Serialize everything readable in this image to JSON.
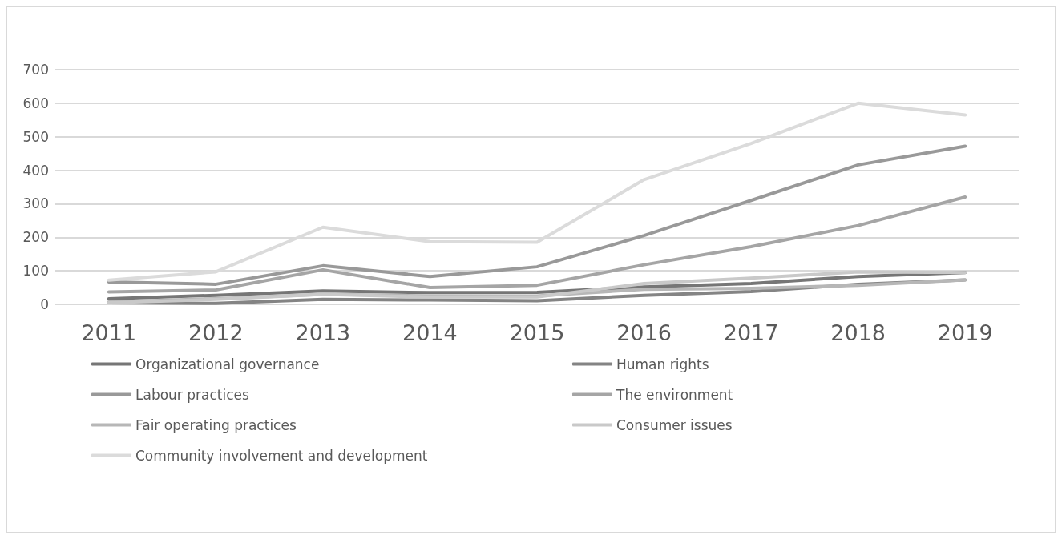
{
  "chart_data": {
    "type": "line",
    "categories": [
      "2011",
      "2012",
      "2013",
      "2014",
      "2015",
      "2016",
      "2017",
      "2018",
      "2019"
    ],
    "series": [
      {
        "name": "Organizational governance",
        "color": "#767676",
        "values": [
          17,
          27,
          40,
          35,
          36,
          52,
          62,
          83,
          95
        ]
      },
      {
        "name": "Human rights",
        "color": "#848484",
        "values": [
          5,
          3,
          15,
          13,
          11,
          27,
          38,
          60,
          73
        ]
      },
      {
        "name": "Labour practices",
        "color": "#999999",
        "values": [
          67,
          60,
          115,
          83,
          112,
          205,
          310,
          416,
          472
        ]
      },
      {
        "name": "The environment",
        "color": "#a5a5a5",
        "values": [
          37,
          43,
          103,
          50,
          57,
          118,
          172,
          235,
          320
        ]
      },
      {
        "name": "Fair operating practices",
        "color": "#b7b7b7",
        "values": [
          7,
          17,
          30,
          25,
          25,
          45,
          48,
          57,
          73
        ]
      },
      {
        "name": "Consumer issues",
        "color": "#c9c9c9",
        "values": [
          5,
          15,
          30,
          22,
          22,
          62,
          78,
          97,
          95
        ]
      },
      {
        "name": "Community involvement and development",
        "color": "#dbdbdb",
        "values": [
          72,
          97,
          230,
          187,
          185,
          372,
          480,
          600,
          565
        ]
      }
    ],
    "ylim": [
      0,
      700
    ],
    "yticks": [
      0,
      100,
      200,
      300,
      400,
      500,
      600,
      700
    ],
    "grid": "y",
    "legend": "bottom",
    "marker": "none",
    "line_style": "solid"
  }
}
